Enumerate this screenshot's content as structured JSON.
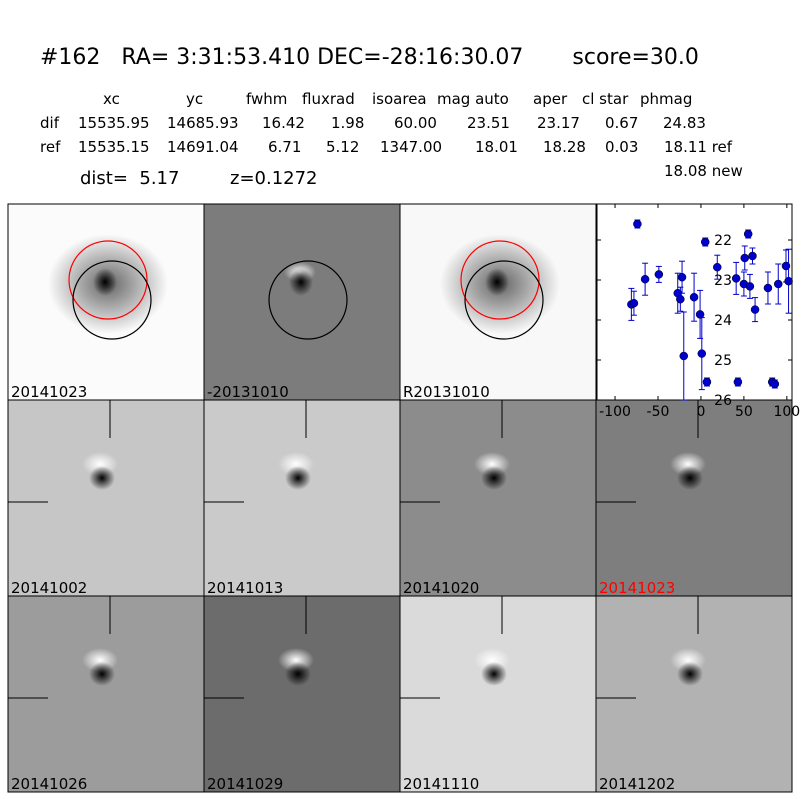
{
  "header": {
    "title": "#162   RA= 3:31:53.410 DEC=-28:16:30.07       score=30.0",
    "columns": [
      "xc",
      "yc",
      "fwhm",
      "fluxrad",
      "isoarea",
      "mag auto",
      "aper",
      "cl star",
      "phmag"
    ],
    "rows": [
      [
        "dif",
        "15535.95",
        "14685.93",
        "16.42",
        "1.98",
        "60.00",
        "23.51",
        "23.17",
        "0.67",
        "24.83"
      ],
      [
        "ref",
        "15535.15",
        "14691.04",
        "6.71",
        "5.12",
        "1347.00",
        "18.01",
        "18.28",
        "0.03",
        "18.11 ref"
      ]
    ],
    "extra": "18.08 new",
    "dist": "dist=  5.17",
    "z": "z=0.1272"
  },
  "panels": [
    "20141023",
    "-20131010",
    "R20131010",
    "20141002",
    "20141013",
    "20141020",
    "20141023",
    "20141026",
    "20141029",
    "20141110",
    "20141202"
  ],
  "chart_data": {
    "type": "scatter",
    "color": "#0000cc",
    "x": [
      -81,
      -78,
      -74,
      -65,
      -49,
      -27,
      -24,
      -22,
      -20,
      -8,
      -1,
      1,
      5,
      7,
      19,
      41,
      43,
      50,
      51,
      55,
      57,
      60,
      63,
      78,
      83,
      86,
      90,
      99,
      102
    ],
    "values": [
      23.61,
      23.58,
      21.6,
      22.98,
      22.86,
      23.33,
      23.48,
      22.93,
      24.9,
      23.43,
      23.86,
      24.84,
      22.05,
      25.55,
      22.68,
      22.96,
      25.55,
      23.1,
      22.45,
      21.85,
      23.16,
      22.4,
      23.74,
      23.2,
      25.55,
      25.6,
      23.1,
      22.65,
      23.03
    ],
    "errors": [
      0.4,
      0.3,
      0.1,
      0.4,
      0.2,
      0.5,
      0.3,
      0.4,
      1.1,
      0.6,
      0.6,
      0.9,
      0.1,
      0.1,
      0.3,
      0.4,
      0.1,
      0.3,
      0.3,
      0.1,
      0.3,
      0.2,
      0.3,
      0.4,
      0.1,
      0.1,
      0.5,
      0.4,
      0.8
    ],
    "xlim": [
      -121,
      106
    ],
    "ylim": [
      26,
      21.1
    ],
    "xticks": [
      -100,
      -50,
      0,
      50,
      100
    ],
    "yticks": [
      22,
      23,
      24,
      25,
      26
    ]
  }
}
